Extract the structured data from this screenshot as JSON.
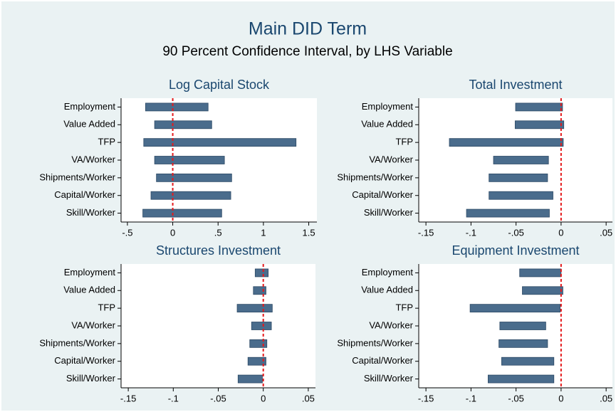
{
  "title": "Main DID Term",
  "subtitle": "90 Percent Confidence Interval, by LHS Variable",
  "chart_data": [
    {
      "type": "rangebar",
      "title": "Log Capital Stock",
      "categories": [
        "Employment",
        "Value Added",
        "TFP",
        "VA/Worker",
        "Shipments/Worker",
        "Capital/Worker",
        "Skill/Worker"
      ],
      "low": [
        -0.3,
        -0.2,
        -0.32,
        -0.2,
        -0.18,
        -0.24,
        -0.33
      ],
      "high": [
        0.39,
        0.43,
        1.36,
        0.57,
        0.65,
        0.64,
        0.54
      ],
      "color": "#4a6c8c",
      "xline": 0,
      "xline_color": "#e41a1c",
      "xlim": [
        -0.57,
        1.59
      ],
      "xticks": [
        {
          "value": -0.5,
          "label": "-.5"
        },
        0,
        {
          "value": 0.5,
          "label": ".5"
        },
        1,
        1.5
      ]
    },
    {
      "type": "rangebar",
      "title": "Total Investment",
      "categories": [
        "Employment",
        "Value Added",
        "TFP",
        "VA/Worker",
        "Shipments/Worker",
        "Capital/Worker",
        "Skill/Worker"
      ],
      "low": [
        -0.0505,
        -0.051,
        -0.124,
        -0.075,
        -0.08,
        -0.08,
        -0.105
      ],
      "high": [
        0.0016,
        0.003,
        0.0024,
        -0.014,
        -0.015,
        -0.009,
        -0.013
      ],
      "color": "#4a6c8c",
      "xline": 0,
      "xline_color": "#e41a1c",
      "xlim": [
        -0.158,
        0.057
      ],
      "xticks": [
        {
          "value": -0.15,
          "label": "-.15"
        },
        {
          "value": -0.1,
          "label": "-.1"
        },
        {
          "value": -0.05,
          "label": "-.05"
        },
        0,
        {
          "value": 0.05,
          "label": ".05"
        }
      ]
    },
    {
      "type": "rangebar",
      "title": "Structures Investment",
      "categories": [
        "Employment",
        "Value Added",
        "TFP",
        "VA/Worker",
        "Shipments/Worker",
        "Capital/Worker",
        "Skill/Worker"
      ],
      "low": [
        -0.009,
        -0.011,
        -0.029,
        -0.013,
        -0.015,
        -0.017,
        -0.028
      ],
      "high": [
        0.0055,
        0.003,
        0.01,
        0.009,
        0.004,
        0.003,
        -0.001
      ],
      "color": "#4a6c8c",
      "xline": 0,
      "xline_color": "#e41a1c",
      "xlim": [
        -0.158,
        0.058
      ],
      "xticks": [
        {
          "value": -0.15,
          "label": "-.15"
        },
        {
          "value": -0.1,
          "label": "-.1"
        },
        {
          "value": -0.05,
          "label": "-.05"
        },
        0,
        {
          "value": 0.05,
          "label": ".05"
        }
      ]
    },
    {
      "type": "rangebar",
      "title": "Equipment Investment",
      "categories": [
        "Employment",
        "Value Added",
        "TFP",
        "VA/Worker",
        "Shipments/Worker",
        "Capital/Worker",
        "Skill/Worker"
      ],
      "low": [
        -0.046,
        -0.043,
        -0.101,
        -0.068,
        -0.069,
        -0.066,
        -0.081
      ],
      "high": [
        0.0,
        0.002,
        -0.001,
        -0.017,
        -0.015,
        -0.008,
        -0.008
      ],
      "color": "#4a6c8c",
      "xline": 0,
      "xline_color": "#e41a1c",
      "xlim": [
        -0.158,
        0.057
      ],
      "xticks": [
        {
          "value": -0.15,
          "label": "-.15"
        },
        {
          "value": -0.1,
          "label": "-.1"
        },
        {
          "value": -0.05,
          "label": "-.05"
        },
        0,
        {
          "value": 0.05,
          "label": ".05"
        }
      ]
    }
  ]
}
